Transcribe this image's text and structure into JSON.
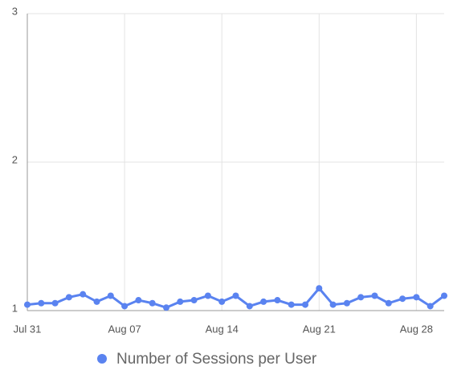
{
  "chart_data": {
    "type": "line",
    "categories": [
      "Jul 31",
      null,
      null,
      null,
      null,
      null,
      null,
      "Aug 07",
      null,
      null,
      null,
      null,
      null,
      null,
      "Aug 14",
      null,
      null,
      null,
      null,
      null,
      null,
      "Aug 21",
      null,
      null,
      null,
      null,
      null,
      null,
      "Aug 28",
      null,
      null
    ],
    "series": [
      {
        "name": "Number of Sessions per User",
        "color": "#5a83f0",
        "values": [
          1.04,
          1.05,
          1.05,
          1.09,
          1.11,
          1.06,
          1.1,
          1.03,
          1.07,
          1.05,
          1.02,
          1.06,
          1.07,
          1.1,
          1.06,
          1.1,
          1.03,
          1.06,
          1.07,
          1.04,
          1.04,
          1.15,
          1.04,
          1.05,
          1.09,
          1.1,
          1.05,
          1.08,
          1.09,
          1.03,
          1.1
        ]
      }
    ],
    "ylim": [
      1,
      3
    ],
    "yticks": [
      1,
      2,
      3
    ],
    "grid": true,
    "legend": "bottom"
  }
}
